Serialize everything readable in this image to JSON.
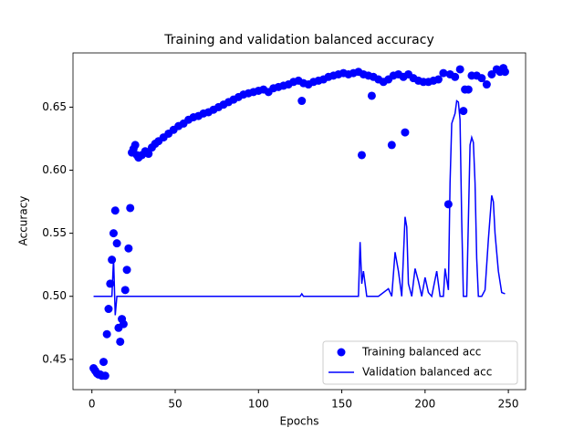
{
  "chart_data": {
    "type": "scatter-line",
    "title": "Training and validation balanced accuracy",
    "x_label": "Epochs",
    "y_label": "Accuracy",
    "xlim": [
      -11.35,
      260.35
    ],
    "xticks": [
      0,
      50,
      100,
      150,
      200,
      250
    ],
    "ylim": [
      0.426,
      0.693
    ],
    "yticks": [
      0.45,
      {
        "value": 0.5,
        "label": "0.50"
      },
      0.55,
      {
        "value": 0.6,
        "label": "0.60"
      },
      0.65
    ],
    "legend": "lower right",
    "series": [
      {
        "name": "Training balanced acc",
        "kind": "scatter",
        "color": "#0000ff",
        "x": [
          1,
          2,
          3,
          4,
          5,
          6,
          7,
          8,
          9,
          10,
          11,
          12,
          13,
          14,
          15,
          16,
          17,
          18,
          19,
          20,
          21,
          22,
          23,
          24,
          25,
          26,
          27,
          28,
          30,
          32,
          34,
          36,
          38,
          40,
          43,
          46,
          49,
          52,
          55,
          58,
          61,
          64,
          67,
          70,
          73,
          76,
          79,
          82,
          85,
          88,
          91,
          94,
          97,
          100,
          103,
          106,
          109,
          112,
          115,
          118,
          121,
          124,
          126,
          127,
          130,
          133,
          136,
          139,
          142,
          145,
          148,
          151,
          154,
          157,
          160,
          162,
          163,
          166,
          168,
          169,
          172,
          175,
          178,
          180,
          181,
          184,
          187,
          188,
          190,
          193,
          196,
          199,
          202,
          205,
          208,
          211,
          214,
          215,
          218,
          221,
          223,
          224,
          226,
          228,
          231,
          234,
          237,
          240,
          243,
          245,
          247,
          248
        ],
        "values": [
          0.443,
          0.441,
          0.439,
          0.438,
          0.438,
          0.437,
          0.448,
          0.437,
          0.47,
          0.49,
          0.51,
          0.529,
          0.55,
          0.568,
          0.542,
          0.475,
          0.464,
          0.482,
          0.478,
          0.505,
          0.521,
          0.538,
          0.57,
          0.614,
          0.617,
          0.62,
          0.612,
          0.61,
          0.612,
          0.615,
          0.613,
          0.618,
          0.621,
          0.623,
          0.626,
          0.629,
          0.632,
          0.635,
          0.637,
          0.64,
          0.642,
          0.643,
          0.645,
          0.646,
          0.648,
          0.65,
          0.652,
          0.654,
          0.656,
          0.658,
          0.66,
          0.661,
          0.662,
          0.663,
          0.664,
          0.662,
          0.665,
          0.666,
          0.667,
          0.668,
          0.67,
          0.671,
          0.655,
          0.669,
          0.668,
          0.67,
          0.671,
          0.672,
          0.674,
          0.675,
          0.676,
          0.677,
          0.676,
          0.677,
          0.678,
          0.612,
          0.676,
          0.675,
          0.659,
          0.674,
          0.672,
          0.67,
          0.672,
          0.62,
          0.675,
          0.676,
          0.674,
          0.63,
          0.676,
          0.673,
          0.671,
          0.67,
          0.67,
          0.671,
          0.672,
          0.677,
          0.573,
          0.676,
          0.674,
          0.68,
          0.647,
          0.664,
          0.664,
          0.675,
          0.675,
          0.673,
          0.668,
          0.676,
          0.68,
          0.678,
          0.681,
          0.678
        ]
      },
      {
        "name": "Validation balanced acc",
        "kind": "line",
        "color": "#0000ff",
        "x": [
          1,
          12,
          13,
          14,
          15,
          16,
          125,
          126,
          127,
          160,
          161,
          162,
          163,
          164,
          165,
          172,
          178,
          180,
          182,
          184,
          186,
          188,
          189,
          190,
          192,
          194,
          196,
          198,
          200,
          202,
          204,
          207,
          209,
          211,
          212,
          214,
          215,
          216,
          218,
          219,
          220,
          221,
          222,
          223,
          225,
          227,
          228,
          229,
          230,
          231,
          232,
          234,
          236,
          238,
          240,
          241,
          242,
          244,
          246,
          248
        ],
        "values": [
          0.5,
          0.5,
          0.53,
          0.485,
          0.5,
          0.5,
          0.5,
          0.502,
          0.5,
          0.5,
          0.543,
          0.51,
          0.52,
          0.51,
          0.5,
          0.5,
          0.506,
          0.5,
          0.535,
          0.52,
          0.5,
          0.563,
          0.555,
          0.51,
          0.5,
          0.522,
          0.512,
          0.5,
          0.515,
          0.503,
          0.5,
          0.52,
          0.5,
          0.5,
          0.522,
          0.505,
          0.59,
          0.637,
          0.645,
          0.655,
          0.654,
          0.64,
          0.56,
          0.5,
          0.5,
          0.62,
          0.626,
          0.622,
          0.59,
          0.53,
          0.5,
          0.5,
          0.505,
          0.545,
          0.58,
          0.575,
          0.55,
          0.52,
          0.503,
          0.502
        ]
      }
    ]
  }
}
